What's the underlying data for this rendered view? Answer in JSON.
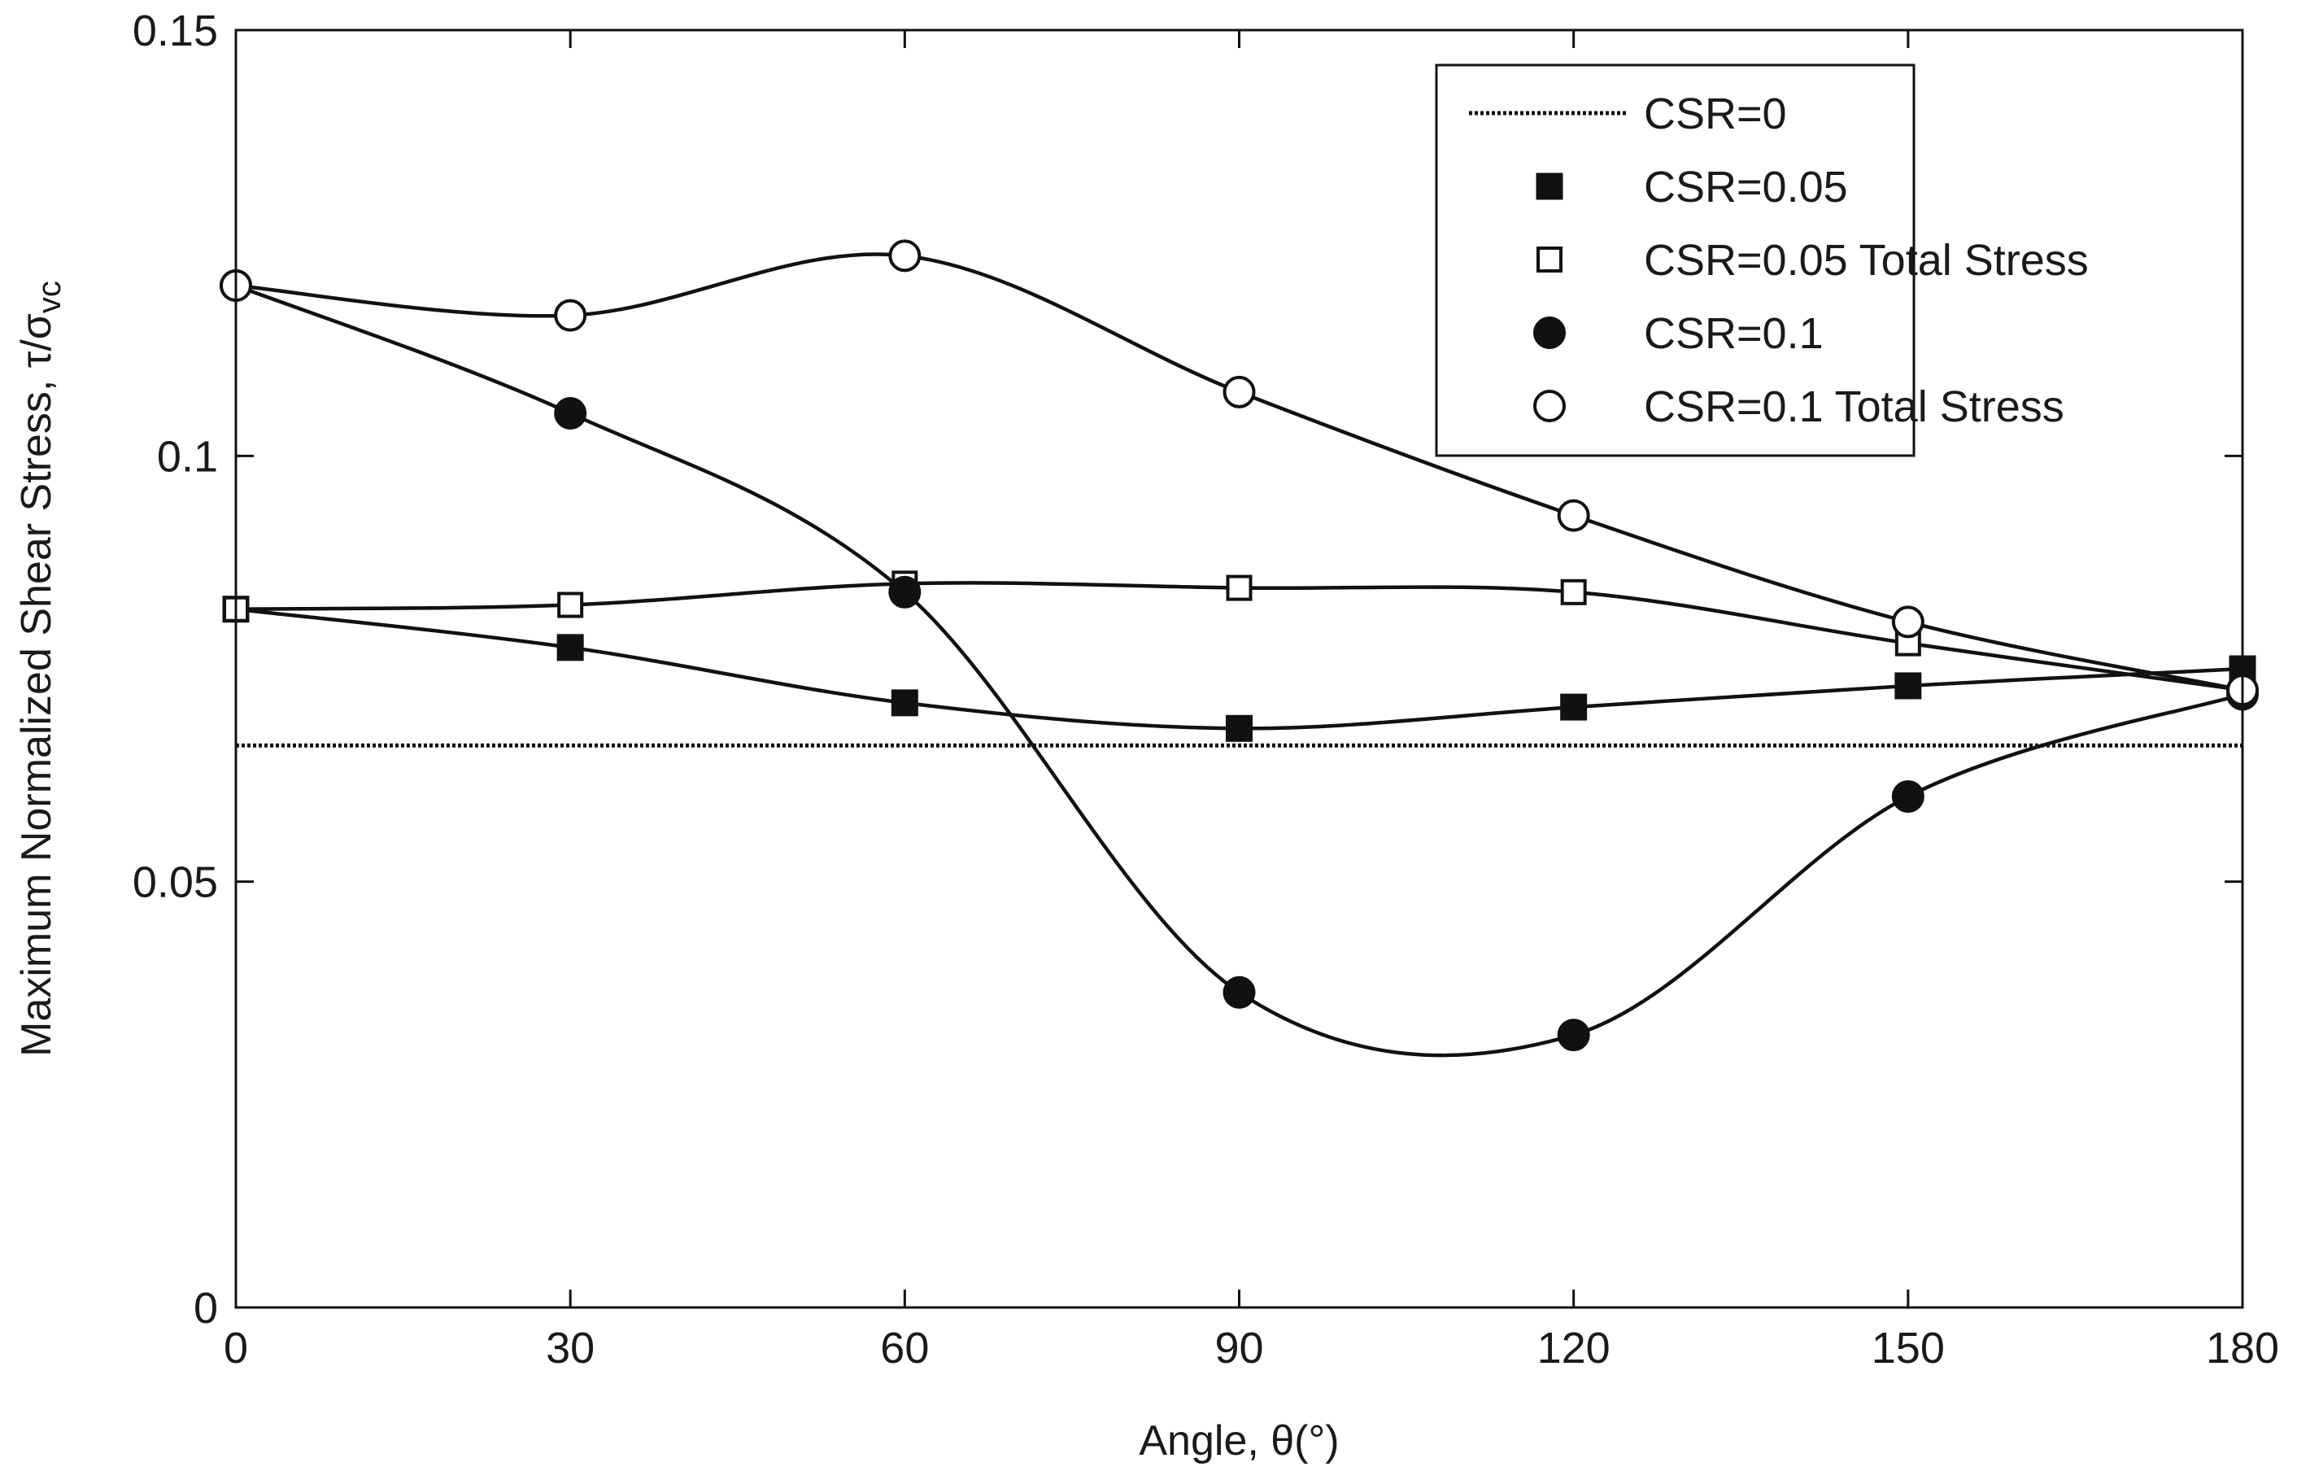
{
  "chart_data": {
    "type": "line",
    "title": "",
    "xlabel": "Angle, θ(°)",
    "ylabel_main": "Maximum Normalized Shear Stress, τ/σ",
    "ylabel_sub": "vc",
    "xlim": [
      0,
      180
    ],
    "ylim": [
      0,
      0.15
    ],
    "x_ticks": [
      0,
      30,
      60,
      90,
      120,
      150,
      180
    ],
    "x_tick_labels": [
      "0",
      "30",
      "60",
      "90",
      "120",
      "150",
      "180"
    ],
    "y_ticks": [
      0,
      0.05,
      0.1,
      0.15
    ],
    "y_tick_labels": [
      "0",
      "0.05",
      "0.1",
      "0.15"
    ],
    "grid": false,
    "legend_position": "top-right",
    "x": [
      0,
      30,
      60,
      90,
      120,
      150,
      180
    ],
    "series": [
      {
        "name": "CSR=0",
        "marker": "none",
        "style": "dotted",
        "values": [
          0.066,
          0.066,
          0.066,
          0.066,
          0.066,
          0.066,
          0.066
        ]
      },
      {
        "name": "CSR=0.05",
        "marker": "square-filled",
        "style": "solid",
        "values": [
          0.082,
          0.0775,
          0.071,
          0.068,
          0.0705,
          0.073,
          0.075
        ]
      },
      {
        "name": "CSR=0.05 Total Stress",
        "marker": "square-open",
        "style": "solid",
        "values": [
          0.082,
          0.0825,
          0.085,
          0.0845,
          0.084,
          0.078,
          0.0725
        ]
      },
      {
        "name": "CSR=0.1",
        "marker": "circle-filled",
        "style": "solid",
        "values": [
          0.12,
          0.105,
          0.084,
          0.037,
          0.032,
          0.06,
          0.072
        ]
      },
      {
        "name": "CSR=0.1 Total Stress",
        "marker": "circle-open",
        "style": "solid",
        "values": [
          0.12,
          0.1165,
          0.1235,
          0.1075,
          0.093,
          0.0805,
          0.0725
        ]
      }
    ]
  }
}
